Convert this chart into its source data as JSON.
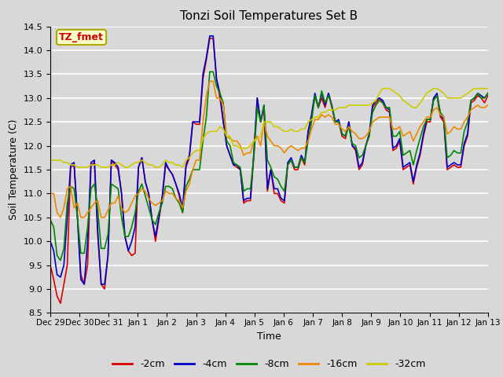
{
  "title": "Tonzi Soil Temperatures Set B",
  "xlabel": "Time",
  "ylabel": "Soil Temperature (C)",
  "ylim": [
    8.5,
    14.5
  ],
  "annotation": "TZ_fmet",
  "annotation_color": "#cc0000",
  "annotation_bg": "#ffffcc",
  "bg_color": "#d8d8d8",
  "series": {
    "-2cm": {
      "color": "#dd0000",
      "lw": 1.2
    },
    "-4cm": {
      "color": "#0000cc",
      "lw": 1.2
    },
    "-8cm": {
      "color": "#008800",
      "lw": 1.2
    },
    "-16cm": {
      "color": "#ee8800",
      "lw": 1.2
    },
    "-32cm": {
      "color": "#cccc00",
      "lw": 1.2
    }
  },
  "xtick_labels": [
    "Dec 29",
    "Dec 30",
    "Dec 31",
    "Jan 1",
    "Jan 2",
    "Jan 3",
    "Jan 4",
    "Jan 5",
    "Jan 6",
    "Jan 7",
    "Jan 8",
    "Jan 9",
    "Jan 10",
    "Jan 11",
    "Jan 12",
    "Jan 13"
  ],
  "t_2cm": [
    9.5,
    9.2,
    8.85,
    8.7,
    9.1,
    9.5,
    11.55,
    11.6,
    10.5,
    9.3,
    9.1,
    9.5,
    11.6,
    11.65,
    10.1,
    9.1,
    9.0,
    9.7,
    11.7,
    11.6,
    11.5,
    11.0,
    10.1,
    9.8,
    9.7,
    9.75,
    11.55,
    11.75,
    11.25,
    11.0,
    10.45,
    10.0,
    10.45,
    10.9,
    11.6,
    11.5,
    11.4,
    11.2,
    10.95,
    10.6,
    11.55,
    11.75,
    12.5,
    12.45,
    12.45,
    13.4,
    13.8,
    14.25,
    14.25,
    13.4,
    13.0,
    12.5,
    12.0,
    11.8,
    11.6,
    11.55,
    11.5,
    10.8,
    10.85,
    10.85,
    11.8,
    13.0,
    12.5,
    12.8,
    11.05,
    11.5,
    11.0,
    11.0,
    10.85,
    10.8,
    11.6,
    11.7,
    11.5,
    11.5,
    11.75,
    11.6,
    12.3,
    12.6,
    13.05,
    12.8,
    13.0,
    12.8,
    13.1,
    12.8,
    12.5,
    12.5,
    12.2,
    12.15,
    12.5,
    12.0,
    11.9,
    11.5,
    11.6,
    12.0,
    12.2,
    12.8,
    12.9,
    13.0,
    12.9,
    12.75,
    12.7,
    11.9,
    11.95,
    12.1,
    11.5,
    11.55,
    11.6,
    11.2,
    11.55,
    11.8,
    12.2,
    12.5,
    12.5,
    13.0,
    13.05,
    12.6,
    12.5,
    11.5,
    11.55,
    11.6,
    11.55,
    11.55,
    12.0,
    12.2,
    12.9,
    12.95,
    13.05,
    13.0,
    12.9,
    13.05
  ],
  "t_4cm": [
    10.0,
    9.8,
    9.3,
    9.25,
    9.5,
    10.5,
    11.6,
    11.65,
    10.5,
    9.2,
    9.1,
    10.0,
    11.65,
    11.7,
    10.2,
    9.1,
    9.1,
    9.7,
    11.7,
    11.65,
    11.55,
    11.0,
    10.1,
    9.8,
    10.0,
    10.3,
    11.55,
    11.75,
    11.25,
    11.0,
    10.45,
    10.1,
    10.5,
    10.95,
    11.65,
    11.5,
    11.4,
    11.2,
    11.0,
    10.7,
    11.6,
    11.8,
    12.5,
    12.5,
    12.5,
    13.5,
    13.85,
    14.3,
    14.3,
    13.4,
    13.1,
    12.5,
    12.0,
    11.8,
    11.6,
    11.6,
    11.5,
    10.85,
    10.9,
    10.9,
    11.85,
    13.0,
    12.5,
    12.85,
    11.1,
    11.5,
    11.1,
    11.1,
    10.9,
    10.85,
    11.65,
    11.75,
    11.55,
    11.55,
    11.8,
    11.65,
    12.3,
    12.65,
    13.1,
    12.8,
    13.1,
    12.85,
    13.1,
    12.85,
    12.5,
    12.55,
    12.25,
    12.2,
    12.5,
    12.0,
    11.95,
    11.55,
    11.65,
    12.0,
    12.25,
    12.85,
    12.95,
    13.0,
    12.95,
    12.8,
    12.75,
    11.95,
    12.0,
    12.15,
    11.55,
    11.6,
    11.65,
    11.25,
    11.6,
    11.85,
    12.25,
    12.55,
    12.55,
    13.0,
    13.1,
    12.65,
    12.55,
    11.55,
    11.6,
    11.65,
    11.6,
    11.6,
    12.05,
    12.25,
    12.95,
    13.0,
    13.1,
    13.05,
    13.0,
    13.1
  ],
  "t_8cm": [
    10.45,
    10.3,
    9.7,
    9.6,
    9.85,
    10.8,
    11.15,
    11.1,
    10.5,
    9.75,
    9.75,
    10.3,
    11.1,
    11.2,
    10.65,
    9.85,
    9.85,
    10.15,
    11.2,
    11.15,
    11.1,
    10.5,
    10.1,
    10.1,
    10.3,
    10.6,
    11.05,
    11.2,
    10.95,
    10.7,
    10.45,
    10.35,
    10.6,
    10.8,
    11.15,
    11.15,
    11.1,
    10.9,
    10.8,
    10.6,
    11.15,
    11.3,
    11.5,
    11.5,
    11.5,
    12.1,
    12.6,
    13.55,
    13.55,
    13.25,
    13.1,
    12.9,
    12.1,
    12.0,
    11.65,
    11.6,
    11.55,
    11.05,
    11.1,
    11.1,
    11.75,
    12.8,
    12.5,
    12.85,
    11.7,
    11.55,
    11.35,
    11.3,
    11.15,
    11.05,
    11.6,
    11.7,
    11.55,
    11.55,
    11.75,
    11.65,
    12.1,
    12.5,
    13.05,
    12.8,
    13.15,
    12.9,
    13.05,
    12.85,
    12.5,
    12.5,
    12.25,
    12.2,
    12.4,
    12.05,
    12.0,
    11.75,
    11.8,
    12.0,
    12.2,
    12.7,
    12.85,
    12.95,
    12.9,
    12.8,
    12.8,
    12.2,
    12.2,
    12.3,
    11.8,
    11.85,
    11.9,
    11.6,
    11.9,
    12.15,
    12.4,
    12.55,
    12.55,
    12.95,
    13.05,
    12.7,
    12.6,
    11.75,
    11.8,
    11.9,
    11.85,
    11.85,
    12.3,
    12.5,
    12.95,
    13.0,
    13.1,
    13.0,
    13.0,
    13.1
  ],
  "t_16cm": [
    11.0,
    11.0,
    10.6,
    10.5,
    10.7,
    11.1,
    11.15,
    10.7,
    10.8,
    10.5,
    10.5,
    10.6,
    10.7,
    10.8,
    10.85,
    10.5,
    10.5,
    10.65,
    10.8,
    10.8,
    10.95,
    10.7,
    10.6,
    10.65,
    10.8,
    10.95,
    11.0,
    11.1,
    11.05,
    10.9,
    10.8,
    10.75,
    10.8,
    10.85,
    11.05,
    11.0,
    11.0,
    10.9,
    10.85,
    10.7,
    11.05,
    11.2,
    11.5,
    11.7,
    11.7,
    12.5,
    13.05,
    13.35,
    13.35,
    13.0,
    13.0,
    12.85,
    12.2,
    12.15,
    12.1,
    12.1,
    12.0,
    11.8,
    11.85,
    11.85,
    12.1,
    12.2,
    12.0,
    12.5,
    12.2,
    12.1,
    12.0,
    12.0,
    11.95,
    11.85,
    11.95,
    12.0,
    11.95,
    11.9,
    11.95,
    11.95,
    12.1,
    12.35,
    12.55,
    12.55,
    12.65,
    12.6,
    12.65,
    12.6,
    12.45,
    12.45,
    12.35,
    12.3,
    12.4,
    12.3,
    12.25,
    12.15,
    12.15,
    12.2,
    12.3,
    12.5,
    12.55,
    12.6,
    12.6,
    12.6,
    12.6,
    12.35,
    12.35,
    12.4,
    12.2,
    12.25,
    12.3,
    12.1,
    12.25,
    12.4,
    12.5,
    12.6,
    12.6,
    12.75,
    12.8,
    12.65,
    12.6,
    12.25,
    12.3,
    12.4,
    12.35,
    12.35,
    12.5,
    12.6,
    12.75,
    12.8,
    12.85,
    12.8,
    12.8,
    12.85
  ],
  "t_32cm": [
    11.7,
    11.7,
    11.7,
    11.7,
    11.65,
    11.65,
    11.6,
    11.6,
    11.55,
    11.55,
    11.55,
    11.55,
    11.6,
    11.6,
    11.6,
    11.55,
    11.55,
    11.55,
    11.6,
    11.6,
    11.65,
    11.6,
    11.55,
    11.55,
    11.6,
    11.65,
    11.65,
    11.7,
    11.65,
    11.6,
    11.6,
    11.55,
    11.55,
    11.6,
    11.7,
    11.65,
    11.65,
    11.6,
    11.6,
    11.55,
    11.7,
    11.75,
    11.85,
    11.9,
    11.9,
    12.15,
    12.25,
    12.3,
    12.3,
    12.3,
    12.4,
    12.35,
    12.2,
    12.2,
    12.0,
    12.0,
    11.95,
    11.95,
    11.95,
    12.0,
    12.1,
    12.15,
    12.2,
    12.5,
    12.5,
    12.5,
    12.4,
    12.4,
    12.35,
    12.3,
    12.3,
    12.35,
    12.3,
    12.3,
    12.35,
    12.35,
    12.5,
    12.55,
    12.6,
    12.6,
    12.7,
    12.7,
    12.75,
    12.75,
    12.75,
    12.8,
    12.8,
    12.8,
    12.85,
    12.85,
    12.85,
    12.85,
    12.85,
    12.85,
    12.85,
    12.9,
    12.95,
    13.1,
    13.2,
    13.2,
    13.2,
    13.15,
    13.1,
    13.05,
    12.95,
    12.9,
    12.85,
    12.8,
    12.8,
    12.9,
    13.0,
    13.1,
    13.15,
    13.2,
    13.2,
    13.15,
    13.1,
    13.0,
    13.0,
    13.0,
    13.0,
    13.0,
    13.05,
    13.1,
    13.15,
    13.2,
    13.2,
    13.2,
    13.2,
    13.2
  ]
}
